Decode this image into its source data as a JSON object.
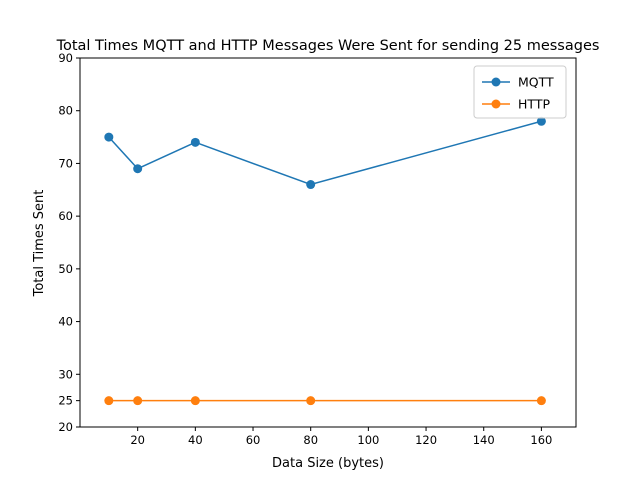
{
  "chart_data": {
    "type": "line",
    "title": "Total Times MQTT and HTTP Messages Were Sent for sending 25 messages",
    "xlabel": "Data Size (bytes)",
    "ylabel": "Total Times Sent",
    "xlim": [
      0,
      172
    ],
    "ylim": [
      20,
      90
    ],
    "xticks": [
      20,
      40,
      60,
      80,
      100,
      120,
      140,
      160
    ],
    "yticks": [
      20,
      25,
      30,
      40,
      50,
      60,
      70,
      80,
      90
    ],
    "grid": false,
    "legend_position": "top-right",
    "x": [
      10,
      20,
      40,
      80,
      160
    ],
    "series": [
      {
        "name": "MQTT",
        "color": "#1f77b4",
        "values": [
          75,
          69,
          74,
          66,
          78
        ]
      },
      {
        "name": "HTTP",
        "color": "#ff7f0e",
        "values": [
          25,
          25,
          25,
          25,
          25
        ]
      }
    ]
  }
}
